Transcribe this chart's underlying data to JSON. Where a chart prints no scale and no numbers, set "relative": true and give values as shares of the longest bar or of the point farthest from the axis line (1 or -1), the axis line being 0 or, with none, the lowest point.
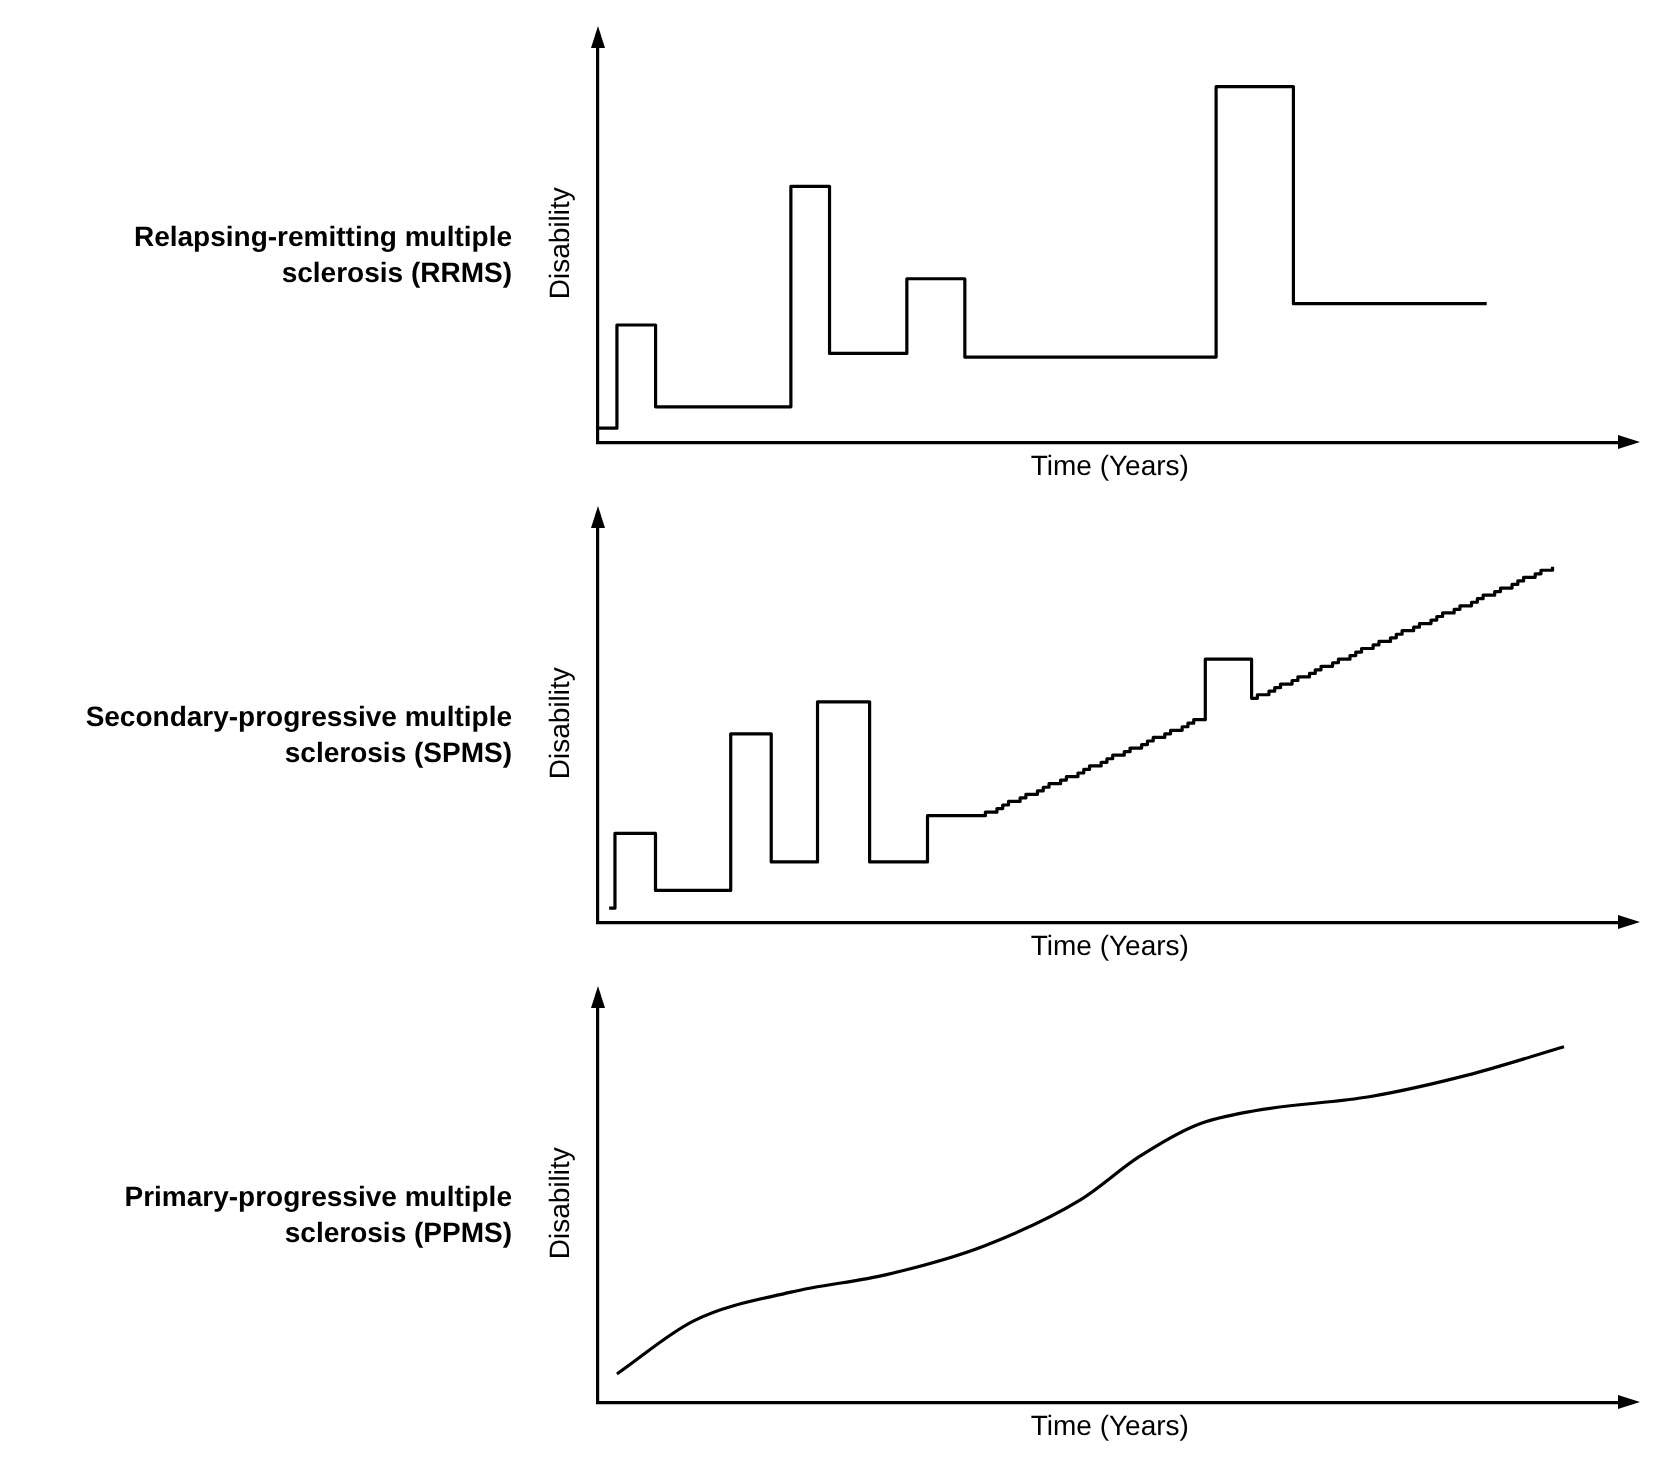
{
  "chart_data": [
    {
      "type": "step",
      "title": "Relapsing-remitting multiple sclerosis (RRMS)",
      "xlabel": "Time (Years)",
      "ylabel": "Disability",
      "relative": true,
      "marker": "none",
      "categories": [
        null,
        null,
        null,
        null,
        null,
        null,
        null,
        null,
        null,
        null,
        null,
        null,
        null,
        null,
        null,
        null,
        null,
        null,
        null,
        null,
        null,
        null,
        null,
        null,
        null,
        null,
        null,
        null,
        null,
        null,
        null,
        null,
        null,
        null,
        null,
        null,
        null,
        null,
        null,
        null,
        null,
        null,
        null,
        null,
        null,
        null,
        null,
        null,
        null,
        null,
        null,
        null,
        null,
        null
      ],
      "series": [
        {
          "color": "#000000",
          "values": [
            0.04,
            0.33,
            0.33,
            0.1,
            0.1,
            0.1,
            0.1,
            0.1,
            0.1,
            0.1,
            0.72,
            0.72,
            0.25,
            0.25,
            0.25,
            0.25,
            0.46,
            0.46,
            0.46,
            0.24,
            0.24,
            0.24,
            0.24,
            0.24,
            0.24,
            0.24,
            0.24,
            0.24,
            0.24,
            0.24,
            0.24,
            0.24,
            1,
            1,
            1,
            1,
            0.39,
            0.39,
            0.39,
            0.39,
            0.39,
            0.39,
            0.39,
            0.39,
            0.39,
            0.39,
            0.39,
            null,
            null,
            null,
            null,
            null,
            null,
            null
          ]
        }
      ]
    },
    {
      "type": "step",
      "title": "Secondary-progressive multiple sclerosis (SPMS)",
      "xlabel": "Time (Years)",
      "ylabel": "Disability",
      "relative": true,
      "marker": "none",
      "categories": [
        null,
        null,
        null,
        null,
        null,
        null,
        null,
        null,
        null,
        null,
        null,
        null,
        null,
        null,
        null,
        null,
        null,
        null,
        null,
        null,
        null,
        null,
        null,
        null,
        null,
        null,
        null,
        null,
        null,
        null,
        null,
        null,
        null,
        null,
        null,
        null,
        null,
        null,
        null,
        null,
        null,
        null,
        null,
        null,
        null,
        null,
        null,
        null,
        null,
        null,
        null,
        null,
        null,
        null,
        null,
        null,
        null,
        null,
        null,
        null,
        null,
        null,
        null,
        null,
        null,
        null,
        null,
        null,
        null,
        null,
        null,
        null,
        null,
        null,
        null,
        null,
        null,
        null,
        null,
        null,
        null,
        null,
        null,
        null,
        null,
        null,
        null,
        null,
        null,
        null,
        null,
        null,
        null,
        null,
        null,
        null,
        null,
        null,
        null,
        null,
        null,
        null,
        null,
        null,
        null,
        null,
        null,
        null,
        null,
        null,
        null,
        null,
        null,
        null,
        null,
        null,
        null,
        null,
        null,
        null,
        null,
        null,
        null,
        null,
        null,
        null,
        null,
        null,
        null,
        null,
        null,
        null,
        null,
        null,
        null,
        null,
        null,
        null,
        null,
        null,
        null,
        null,
        null,
        null,
        null,
        null,
        null,
        null,
        null,
        null,
        null,
        null,
        null,
        null,
        null,
        null,
        null,
        null,
        null,
        null,
        null,
        null,
        null,
        null,
        null,
        null,
        null,
        null,
        null,
        null,
        null,
        null,
        null,
        null,
        null,
        null,
        null,
        null
      ],
      "series": [
        {
          "color": "#000000",
          "values": [
            null,
            null,
            0.04,
            0.25,
            0.25,
            0.25,
            0.25,
            0.25,
            0.25,
            0.25,
            0.09,
            0.09,
            0.09,
            0.09,
            0.09,
            0.09,
            0.09,
            0.09,
            0.09,
            0.09,
            0.09,
            0.09,
            0.09,
            0.53,
            0.53,
            0.53,
            0.53,
            0.53,
            0.53,
            0.53,
            0.17,
            0.17,
            0.17,
            0.17,
            0.17,
            0.17,
            0.17,
            0.17,
            0.62,
            0.62,
            0.62,
            0.62,
            0.62,
            0.62,
            0.62,
            0.62,
            0.62,
            0.17,
            0.17,
            0.17,
            0.17,
            0.17,
            0.17,
            0.17,
            0.17,
            0.17,
            0.17,
            0.3,
            0.3,
            0.3,
            0.3,
            0.3,
            0.3,
            0.3,
            0.3,
            0.3,
            0.3,
            0.31,
            0.31,
            0.32,
            0.33,
            0.34,
            0.34,
            0.35,
            0.36,
            0.36,
            0.37,
            0.38,
            0.39,
            0.39,
            0.4,
            0.41,
            0.41,
            0.42,
            0.43,
            0.44,
            0.44,
            0.45,
            0.46,
            0.47,
            0.47,
            0.48,
            0.49,
            0.49,
            0.5,
            0.51,
            0.52,
            0.52,
            0.53,
            0.54,
            0.54,
            0.55,
            0.56,
            0.57,
            0.57,
            0.74,
            0.74,
            0.74,
            0.74,
            0.74,
            0.74,
            0.74,
            0.74,
            0.63,
            0.64,
            0.64,
            0.65,
            0.66,
            0.67,
            0.67,
            0.68,
            0.69,
            0.69,
            0.7,
            0.71,
            0.72,
            0.72,
            0.73,
            0.74,
            0.74,
            0.75,
            0.76,
            0.77,
            0.77,
            0.78,
            0.79,
            0.79,
            0.8,
            0.81,
            0.82,
            0.82,
            0.83,
            0.84,
            0.84,
            0.85,
            0.86,
            0.87,
            0.87,
            0.88,
            0.89,
            0.89,
            0.9,
            0.91,
            0.92,
            0.92,
            0.93,
            0.94,
            0.94,
            0.95,
            0.96,
            0.97,
            0.97,
            0.98,
            0.99,
            0.99,
            1,
            null,
            null,
            null,
            null,
            null,
            null,
            null,
            null,
            null,
            null,
            null,
            null
          ]
        }
      ]
    },
    {
      "type": "line",
      "title": "Primary-progressive multiple sclerosis (PPMS)",
      "xlabel": "Time (Years)",
      "ylabel": "Disability",
      "relative": true,
      "marker": "none",
      "categories": [
        null,
        null,
        null,
        null,
        null,
        null,
        null,
        null,
        null,
        null,
        null,
        null,
        null,
        null,
        null,
        null,
        null,
        null,
        null,
        null,
        null,
        null,
        null,
        null,
        null,
        null,
        null,
        null,
        null,
        null,
        null,
        null,
        null,
        null,
        null,
        null,
        null,
        null,
        null,
        null,
        null,
        null,
        null,
        null,
        null,
        null,
        null,
        null,
        null,
        null,
        null,
        null,
        null,
        null
      ],
      "series": [
        {
          "color": "#000000",
          "values": [
            null,
            0.08,
            null,
            null,
            null,
            0.23,
            null,
            null,
            null,
            null,
            0.31,
            null,
            null,
            null,
            null,
            0.36,
            null,
            null,
            null,
            null,
            0.44,
            null,
            null,
            null,
            null,
            0.57,
            null,
            null,
            0.69,
            null,
            null,
            0.78,
            null,
            null,
            0.82,
            null,
            null,
            null,
            null,
            null,
            0.86,
            null,
            null,
            null,
            null,
            0.92,
            null,
            null,
            null,
            null,
            1,
            null,
            null,
            null
          ]
        }
      ]
    }
  ]
}
